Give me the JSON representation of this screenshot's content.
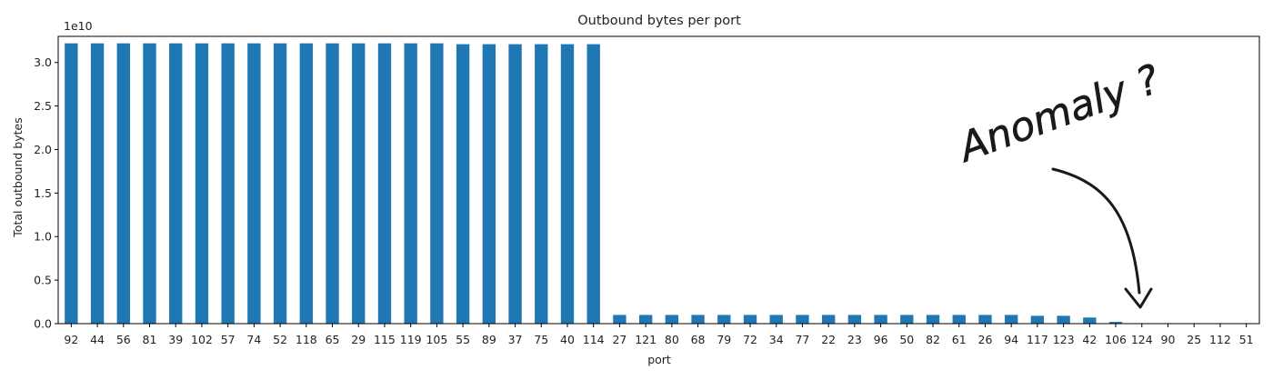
{
  "chart_data": {
    "type": "bar",
    "title": "Outbound bytes per port",
    "xlabel": "port",
    "ylabel": "Total outbound bytes",
    "y_scale_label": "1e10",
    "ylim": [
      0,
      3.3
    ],
    "yticks": [
      "0.0",
      "0.5",
      "1.0",
      "1.5",
      "2.0",
      "2.5",
      "3.0"
    ],
    "grid": false,
    "legend": "none",
    "bar_color": "#1f77b4",
    "categories": [
      "92",
      "44",
      "56",
      "81",
      "39",
      "102",
      "57",
      "74",
      "52",
      "118",
      "65",
      "29",
      "115",
      "119",
      "105",
      "55",
      "89",
      "37",
      "75",
      "40",
      "114",
      "27",
      "121",
      "80",
      "68",
      "79",
      "72",
      "34",
      "77",
      "22",
      "23",
      "96",
      "50",
      "82",
      "61",
      "26",
      "94",
      "117",
      "123",
      "42",
      "106",
      "124",
      "90",
      "25",
      "112",
      "51"
    ],
    "values": [
      3.22,
      3.22,
      3.22,
      3.22,
      3.22,
      3.22,
      3.22,
      3.22,
      3.22,
      3.22,
      3.22,
      3.22,
      3.22,
      3.22,
      3.22,
      3.21,
      3.21,
      3.21,
      3.21,
      3.21,
      3.21,
      0.1,
      0.1,
      0.1,
      0.1,
      0.1,
      0.1,
      0.1,
      0.1,
      0.1,
      0.1,
      0.1,
      0.1,
      0.1,
      0.1,
      0.1,
      0.1,
      0.09,
      0.09,
      0.07,
      0.02,
      0.005,
      0,
      0,
      0,
      0
    ],
    "annotation": {
      "text": "Anomaly ?",
      "points_to_category": "124"
    }
  }
}
